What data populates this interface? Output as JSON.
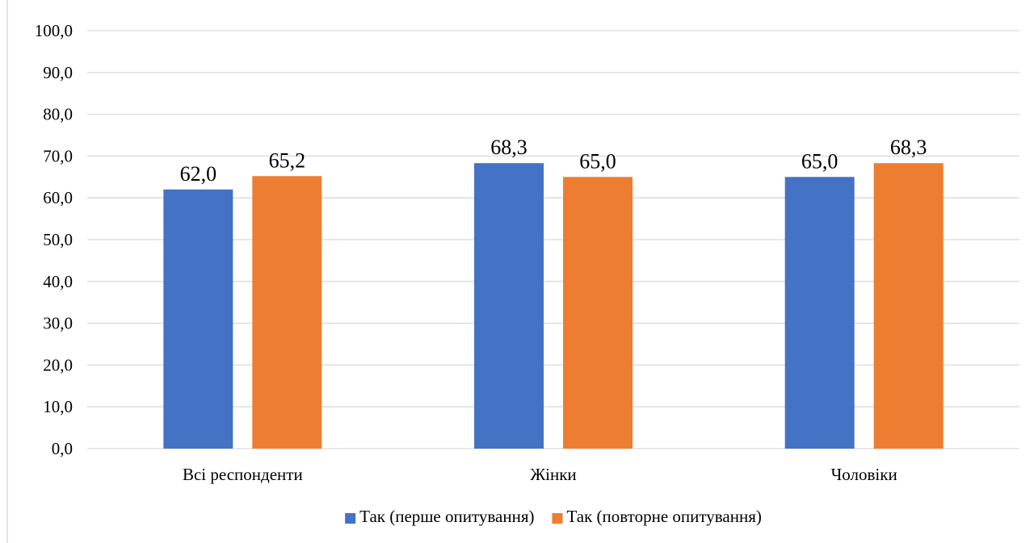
{
  "chart_data": {
    "type": "bar",
    "title": "",
    "xlabel": "",
    "ylabel": "",
    "categories": [
      "Всі респонденти",
      "Жінки",
      "Чоловіки"
    ],
    "series": [
      {
        "name": "Так (перше опитування)",
        "values": [
          62.0,
          68.3,
          65.0
        ],
        "color": "#4472c4"
      },
      {
        "name": "Так (повторне опитування)",
        "values": [
          65.2,
          65.0,
          68.3
        ],
        "color": "#ed7d31"
      }
    ],
    "ylim": [
      0,
      100
    ],
    "yticks": [
      "0,0",
      "10,0",
      "20,0",
      "30,0",
      "40,0",
      "50,0",
      "60,0",
      "70,0",
      "80,0",
      "90,0",
      "100,0"
    ],
    "data_labels": [
      [
        "62,0",
        "68,3",
        "65,0"
      ],
      [
        "65,2",
        "65,0",
        "68,3"
      ]
    ],
    "grid": true,
    "legend_position": "bottom"
  }
}
